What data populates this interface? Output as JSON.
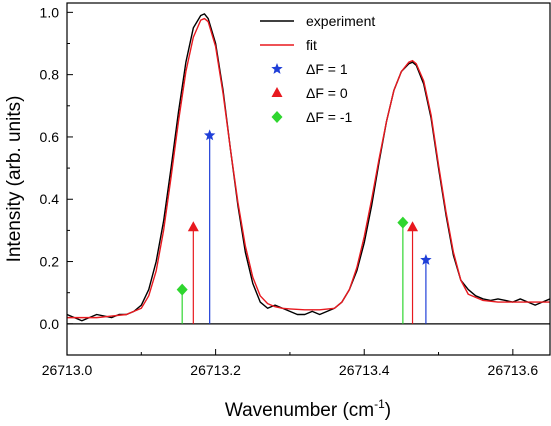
{
  "chart_data": {
    "type": "line",
    "title": "",
    "xlabel": "Wavenumber (cm",
    "xlabel_superscript": "-1",
    "xlabel_suffix": ")",
    "ylabel": "Intensity (arb. units)",
    "xlim": [
      26713.0,
      26713.65
    ],
    "ylim": [
      -0.1,
      1.03
    ],
    "x_ticks": [
      26713.0,
      26713.2,
      26713.4,
      26713.6
    ],
    "x_tick_labels": [
      "26713.0",
      "26713.2",
      "26713.4",
      "26713.6"
    ],
    "y_ticks": [
      0.0,
      0.2,
      0.4,
      0.6,
      0.8,
      1.0
    ],
    "y_tick_labels": [
      "0.0",
      "0.2",
      "0.4",
      "0.6",
      "0.8",
      "1.0"
    ],
    "grid": false,
    "legend_position": "top-right",
    "baseline": 0.0,
    "series": [
      {
        "name": "experiment",
        "kind": "line",
        "color": "#000000",
        "x": [
          26713.0,
          26713.01,
          26713.02,
          26713.03,
          26713.04,
          26713.05,
          26713.06,
          26713.07,
          26713.08,
          26713.09,
          26713.1,
          26713.11,
          26713.12,
          26713.13,
          26713.14,
          26713.15,
          26713.16,
          26713.17,
          26713.18,
          26713.185,
          26713.19,
          26713.2,
          26713.21,
          26713.22,
          26713.23,
          26713.24,
          26713.25,
          26713.26,
          26713.27,
          26713.28,
          26713.29,
          26713.3,
          26713.31,
          26713.32,
          26713.33,
          26713.34,
          26713.35,
          26713.36,
          26713.37,
          26713.38,
          26713.39,
          26713.4,
          26713.41,
          26713.42,
          26713.43,
          26713.44,
          26713.45,
          26713.46,
          26713.465,
          26713.47,
          26713.48,
          26713.49,
          26713.5,
          26713.51,
          26713.52,
          26713.53,
          26713.54,
          26713.55,
          26713.56,
          26713.57,
          26713.58,
          26713.59,
          26713.6,
          26713.61,
          26713.62,
          26713.63,
          26713.64,
          26713.65
        ],
        "y": [
          0.03,
          0.02,
          0.01,
          0.02,
          0.03,
          0.025,
          0.02,
          0.03,
          0.03,
          0.04,
          0.06,
          0.11,
          0.2,
          0.33,
          0.5,
          0.68,
          0.84,
          0.95,
          0.99,
          0.995,
          0.98,
          0.9,
          0.75,
          0.56,
          0.38,
          0.23,
          0.13,
          0.07,
          0.05,
          0.06,
          0.05,
          0.04,
          0.03,
          0.03,
          0.04,
          0.03,
          0.04,
          0.05,
          0.07,
          0.11,
          0.17,
          0.26,
          0.38,
          0.52,
          0.65,
          0.75,
          0.81,
          0.835,
          0.84,
          0.83,
          0.77,
          0.66,
          0.5,
          0.35,
          0.22,
          0.14,
          0.11,
          0.09,
          0.08,
          0.075,
          0.08,
          0.075,
          0.07,
          0.08,
          0.07,
          0.06,
          0.07,
          0.08
        ]
      },
      {
        "name": "fit",
        "kind": "line",
        "color": "#e8191f",
        "x": [
          26713.0,
          26713.02,
          26713.04,
          26713.06,
          26713.08,
          26713.1,
          26713.11,
          26713.12,
          26713.13,
          26713.14,
          26713.15,
          26713.16,
          26713.17,
          26713.18,
          26713.185,
          26713.19,
          26713.2,
          26713.21,
          26713.22,
          26713.23,
          26713.24,
          26713.25,
          26713.26,
          26713.27,
          26713.28,
          26713.29,
          26713.3,
          26713.32,
          26713.34,
          26713.36,
          26713.37,
          26713.38,
          26713.39,
          26713.4,
          26713.41,
          26713.42,
          26713.43,
          26713.44,
          26713.45,
          26713.46,
          26713.465,
          26713.47,
          26713.48,
          26713.49,
          26713.5,
          26713.51,
          26713.52,
          26713.53,
          26713.54,
          26713.56,
          26713.58,
          26713.6,
          26713.65
        ],
        "y": [
          0.02,
          0.02,
          0.02,
          0.025,
          0.03,
          0.05,
          0.09,
          0.17,
          0.3,
          0.47,
          0.65,
          0.81,
          0.92,
          0.975,
          0.98,
          0.97,
          0.89,
          0.74,
          0.56,
          0.39,
          0.25,
          0.15,
          0.09,
          0.065,
          0.055,
          0.05,
          0.048,
          0.045,
          0.045,
          0.05,
          0.07,
          0.11,
          0.18,
          0.28,
          0.4,
          0.53,
          0.65,
          0.75,
          0.81,
          0.84,
          0.845,
          0.835,
          0.78,
          0.67,
          0.51,
          0.36,
          0.23,
          0.14,
          0.095,
          0.075,
          0.07,
          0.07,
          0.07
        ]
      },
      {
        "name": "ΔF = 1",
        "kind": "stick",
        "marker": "star",
        "color": "#1f3fd8",
        "points": [
          [
            26713.192,
            0.605
          ],
          [
            26713.483,
            0.205
          ]
        ]
      },
      {
        "name": "ΔF = 0",
        "kind": "stick",
        "marker": "triangle",
        "color": "#e8191f",
        "points": [
          [
            26713.17,
            0.31
          ],
          [
            26713.465,
            0.31
          ]
        ]
      },
      {
        "name": "ΔF = -1",
        "kind": "stick",
        "marker": "diamond",
        "color": "#2fd62f",
        "points": [
          [
            26713.155,
            0.11
          ],
          [
            26713.452,
            0.325
          ]
        ]
      }
    ]
  }
}
